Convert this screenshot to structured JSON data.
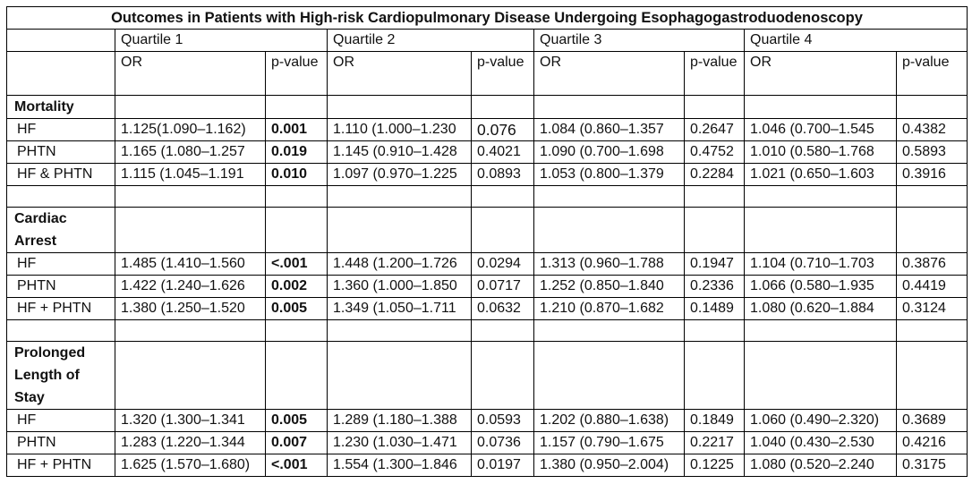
{
  "title": "Outcomes in Patients with High-risk Cardiopulmonary Disease Undergoing Esophagogastroduodenoscopy",
  "quartiles": [
    "Quartile 1",
    "Quartile 2",
    "Quartile 3",
    "Quartile 4"
  ],
  "col_or": "OR",
  "col_p": "p-value",
  "sections": [
    {
      "label": "Mortality",
      "rows": [
        {
          "label": "HF",
          "cells": [
            {
              "or": "1.125(1.090–1.162)",
              "p": "0.001",
              "bold": true
            },
            {
              "or": "1.110 (1.000–1.230",
              "p": "0.076",
              "big": true
            },
            {
              "or": "1.084 (0.860–1.357",
              "p": "0.2647"
            },
            {
              "or": "1.046 (0.700–1.545",
              "p": "0.4382"
            }
          ]
        },
        {
          "label": "PHTN",
          "cells": [
            {
              "or": "1.165 (1.080–1.257",
              "p": "0.019",
              "bold": true
            },
            {
              "or": "1.145 (0.910–1.428",
              "p": "0.4021"
            },
            {
              "or": "1.090 (0.700–1.698",
              "p": "0.4752"
            },
            {
              "or": "1.010 (0.580–1.768",
              "p": "0.5893"
            }
          ]
        },
        {
          "label": "HF & PHTN",
          "cells": [
            {
              "or": "1.115 (1.045–1.191",
              "p": "0.010",
              "bold": true
            },
            {
              "or": "1.097 (0.970–1.225",
              "p": "0.0893"
            },
            {
              "or": "1.053 (0.800–1.379",
              "p": "0.2284"
            },
            {
              "or": "1.021 (0.650–1.603",
              "p": "0.3916"
            }
          ]
        }
      ]
    },
    {
      "label": "Cardiac Arrest",
      "rows": [
        {
          "label": "HF",
          "cells": [
            {
              "or": "1.485 (1.410–1.560",
              "p": "<.001",
              "bold": true
            },
            {
              "or": "1.448 (1.200–1.726",
              "p": "0.0294"
            },
            {
              "or": "1.313 (0.960–1.788",
              "p": "0.1947"
            },
            {
              "or": "1.104 (0.710–1.703",
              "p": "0.3876"
            }
          ]
        },
        {
          "label": "PHTN",
          "cells": [
            {
              "or": "1.422 (1.240–1.626",
              "p": "0.002",
              "bold": true
            },
            {
              "or": "1.360 (1.000–1.850",
              "p": "0.0717"
            },
            {
              "or": "1.252 (0.850–1.840",
              "p": "0.2336"
            },
            {
              "or": "1.066 (0.580–1.935",
              "p": "0.4419"
            }
          ]
        },
        {
          "label": "HF + PHTN",
          "cells": [
            {
              "or": "1.380 (1.250–1.520",
              "p": "0.005",
              "bold": true
            },
            {
              "or": "1.349 (1.050–1.711",
              "p": "0.0632"
            },
            {
              "or": "1.210 (0.870–1.682",
              "p": "0.1489"
            },
            {
              "or": "1.080 (0.620–1.884",
              "p": "0.3124"
            }
          ]
        }
      ]
    },
    {
      "label": "Prolonged Length of Stay",
      "rows": [
        {
          "label": "HF",
          "cells": [
            {
              "or": "1.320 (1.300–1.341",
              "p": "0.005",
              "bold": true
            },
            {
              "or": "1.289 (1.180–1.388",
              "p": "0.0593"
            },
            {
              "or": "1.202 (0.880–1.638)",
              "p": "0.1849"
            },
            {
              "or": "1.060 (0.490–2.320)",
              "p": "0.3689"
            }
          ]
        },
        {
          "label": "PHTN",
          "cells": [
            {
              "or": "1.283 (1.220–1.344",
              "p": "0.007",
              "bold": true
            },
            {
              "or": "1.230 (1.030–1.471",
              "p": "0.0736"
            },
            {
              "or": "1.157 (0.790–1.675",
              "p": "0.2217"
            },
            {
              "or": "1.040 (0.430–2.530",
              "p": "0.4216"
            }
          ]
        },
        {
          "label": "HF + PHTN",
          "cells": [
            {
              "or": "1.625 (1.570–1.680)",
              "p": "<.001",
              "bold": true
            },
            {
              "or": "1.554 (1.300–1.846",
              "p": "0.0197"
            },
            {
              "or": "1.380 (0.950–2.004)",
              "p": "0.1225"
            },
            {
              "or": "1.080 (0.520–2.240",
              "p": "0.3175"
            }
          ]
        }
      ]
    }
  ]
}
